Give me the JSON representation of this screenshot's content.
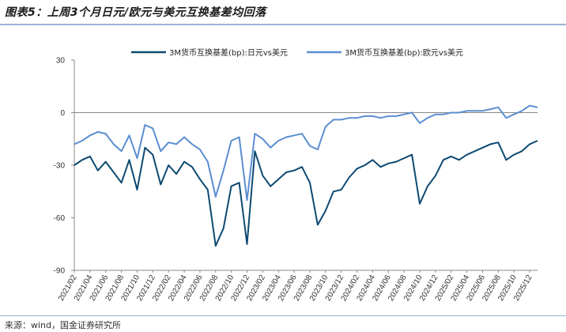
{
  "header": {
    "title": "图表5：上周3个月日元/欧元与美元互换基差均回落"
  },
  "footer": {
    "source": "来源：wind，国金证券研究所"
  },
  "colors": {
    "jpy": "#0d4a72",
    "eur": "#5b8ed0",
    "axis": "#888888",
    "rule": "#9bb5d4"
  },
  "chart_data": {
    "type": "line",
    "title": "",
    "xlabel": "",
    "ylabel": "",
    "ylim": [
      -90,
      30
    ],
    "yticks": [
      30,
      0,
      -30,
      -60,
      -90
    ],
    "x_range": [
      "2021-02",
      "2026-01"
    ],
    "x_ticks": [
      "2021/02",
      "2021/04",
      "2021/06",
      "2021/08",
      "2021/10",
      "2021/12",
      "2022/02",
      "2022/04",
      "2022/06",
      "2022/08",
      "2022/10",
      "2022/12",
      "2023/02",
      "2023/04",
      "2023/06",
      "2023/08",
      "2023/10",
      "2023/12",
      "2024/02",
      "2024/04",
      "2024/06",
      "2024/08",
      "2024/10",
      "2024/12",
      "2025/02",
      "2025/04",
      "2025/06",
      "2025/08",
      "2025/10",
      "2025/12"
    ],
    "legend": "top",
    "grid": false,
    "series": [
      {
        "name": "3M货币互换基差(bp):日元vs美元",
        "x": [
          "2021-02",
          "2021-03",
          "2021-04",
          "2021-05",
          "2021-06",
          "2021-07",
          "2021-08",
          "2021-09",
          "2021-10",
          "2021-11",
          "2021-12",
          "2022-01",
          "2022-02",
          "2022-03",
          "2022-04",
          "2022-05",
          "2022-06",
          "2022-07",
          "2022-08",
          "2022-09",
          "2022-10",
          "2022-11",
          "2022-12",
          "2023-01",
          "2023-02",
          "2023-03",
          "2023-04",
          "2023-05",
          "2023-06",
          "2023-07",
          "2023-08",
          "2023-09",
          "2023-10",
          "2023-11",
          "2023-12",
          "2024-01",
          "2024-02",
          "2024-03",
          "2024-04",
          "2024-05",
          "2024-06",
          "2024-07",
          "2024-08",
          "2024-09",
          "2024-10",
          "2024-11",
          "2024-12",
          "2025-01",
          "2025-02",
          "2025-03",
          "2025-04",
          "2025-05",
          "2025-06",
          "2025-07",
          "2025-08",
          "2025-09",
          "2025-10",
          "2025-11",
          "2025-12",
          "2026-01"
        ],
        "values": [
          -30,
          -27,
          -25,
          -33,
          -28,
          -34,
          -40,
          -27,
          -44,
          -20,
          -24,
          -41,
          -30,
          -35,
          -28,
          -31,
          -38,
          -44,
          -76,
          -66,
          -42,
          -40,
          -75,
          -22,
          -36,
          -42,
          -38,
          -34,
          -33,
          -31,
          -40,
          -64,
          -56,
          -45,
          -44,
          -37,
          -32,
          -30,
          -27,
          -31,
          -29,
          -28,
          -26,
          -24,
          -52,
          -42,
          -36,
          -27,
          -25,
          -27,
          -24,
          -22,
          -20,
          -18,
          -17,
          -27,
          -24,
          -22,
          -18,
          -16
        ]
      },
      {
        "name": "3M货币互换基差(bp):欧元vs美元",
        "x": [
          "2021-02",
          "2021-03",
          "2021-04",
          "2021-05",
          "2021-06",
          "2021-07",
          "2021-08",
          "2021-09",
          "2021-10",
          "2021-11",
          "2021-12",
          "2022-01",
          "2022-02",
          "2022-03",
          "2022-04",
          "2022-05",
          "2022-06",
          "2022-07",
          "2022-08",
          "2022-09",
          "2022-10",
          "2022-11",
          "2022-12",
          "2023-01",
          "2023-02",
          "2023-03",
          "2023-04",
          "2023-05",
          "2023-06",
          "2023-07",
          "2023-08",
          "2023-09",
          "2023-10",
          "2023-11",
          "2023-12",
          "2024-01",
          "2024-02",
          "2024-03",
          "2024-04",
          "2024-05",
          "2024-06",
          "2024-07",
          "2024-08",
          "2024-09",
          "2024-10",
          "2024-11",
          "2024-12",
          "2025-01",
          "2025-02",
          "2025-03",
          "2025-04",
          "2025-05",
          "2025-06",
          "2025-07",
          "2025-08",
          "2025-09",
          "2025-10",
          "2025-11",
          "2025-12",
          "2026-01"
        ],
        "values": [
          -18,
          -16,
          -13,
          -11,
          -12,
          -18,
          -22,
          -13,
          -26,
          -7,
          -9,
          -22,
          -17,
          -18,
          -14,
          -18,
          -21,
          -28,
          -48,
          -33,
          -16,
          -14,
          -50,
          -12,
          -15,
          -20,
          -16,
          -14,
          -13,
          -12,
          -19,
          -21,
          -8,
          -4,
          -4,
          -3,
          -3,
          -2,
          -2,
          -3,
          -2,
          -2,
          -1,
          0,
          -6,
          -3,
          -1,
          -1,
          0,
          0,
          1,
          1,
          1,
          2,
          3,
          -3,
          -1,
          1,
          4,
          3
        ]
      }
    ]
  }
}
